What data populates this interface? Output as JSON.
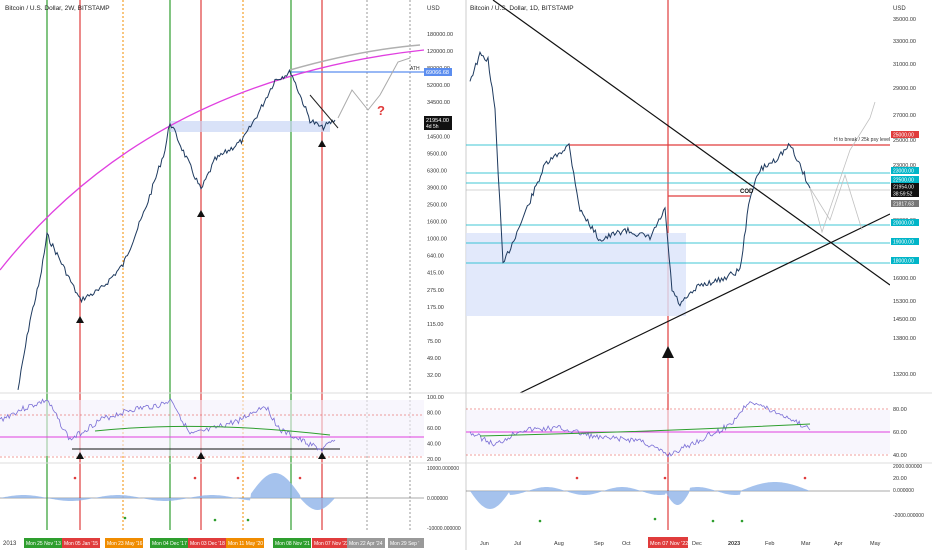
{
  "left": {
    "title": "Bitcoin / U.S. Dollar, 2W, BITSTAMP",
    "currency": "USD",
    "y_ticks": [
      "180000.00",
      "120000.00",
      "80000.00",
      "52000.00",
      "34500.00",
      "22500.00",
      "14500.00",
      "9500.00",
      "6300.00",
      "3900.00",
      "2500.00",
      "1600.00",
      "1000.00",
      "640.00",
      "415.00",
      "275.00",
      "175.00",
      "115.00",
      "75.00",
      "49.00",
      "32.00"
    ],
    "price_label": "21954.00",
    "price_sub": "4d 5h",
    "ath_price": "69066.68",
    "ath_label": "ATH",
    "question_mark": "?",
    "year_label": "2013",
    "date_badges": [
      {
        "text": "Mon 25 Nov '13",
        "color": "#2e9e2e"
      },
      {
        "text": "Mon 05 Jan '15",
        "color": "#e03c3c"
      },
      {
        "text": "Mon 23 May '16",
        "color": "#f08c00"
      },
      {
        "text": "Mon 04 Dec '17",
        "color": "#2e9e2e"
      },
      {
        "text": "Mon 03 Dec '18",
        "color": "#e03c3c"
      },
      {
        "text": "Mon 11 May '20",
        "color": "#f08c00"
      },
      {
        "text": "Mon 08 Nov '21",
        "color": "#2e9e2e"
      },
      {
        "text": "Mon 07 Nov '22",
        "color": "#e03c3c"
      },
      {
        "text": "Mon 22 Apr '24",
        "color": "#999999"
      },
      {
        "text": "Mon 29 Sep '",
        "color": "#999999"
      }
    ],
    "rsi_ticks": [
      "100.00",
      "80.00",
      "60.00",
      "40.00",
      "20.00"
    ],
    "macd_ticks": [
      "10000.000000",
      "0.000000",
      "-10000.000000"
    ]
  },
  "right": {
    "title": "Bitcoin / U.S. Dollar, 1D, BITSTAMP",
    "currency": "USD",
    "y_ticks": [
      "35000.00",
      "33000.00",
      "31000.00",
      "29000.00",
      "27000.00",
      "25000.00",
      "23000.00",
      "21500.00",
      "20000.00",
      "18000.00",
      "16000.00",
      "15300.00",
      "14500.00",
      "13800.00",
      "13200.00"
    ],
    "hl_prices": [
      {
        "text": "25000.00",
        "color": "#e03c3c"
      },
      {
        "text": "23000.00",
        "color": "#00b5c8"
      },
      {
        "text": "22500.00",
        "color": "#00b5c8"
      },
      {
        "text": "21954.00",
        "color": "#111111"
      },
      {
        "text": "38:59:52",
        "color": "#111111"
      },
      {
        "text": "21817.63",
        "color": "#777777"
      },
      {
        "text": "20000.00",
        "color": "#00b5c8"
      },
      {
        "text": "19000.00",
        "color": "#00b5c8"
      },
      {
        "text": "18000.00",
        "color": "#00b5c8"
      }
    ],
    "annotation": "H to break / 25k psy level",
    "cod_label": "COD",
    "x_ticks": [
      "Jun",
      "Jul",
      "Aug",
      "Sep",
      "Oct",
      "Dec",
      "2023",
      "Feb",
      "Mar",
      "Apr",
      "May"
    ],
    "date_badge": {
      "text": "Mon 07 Nov '22",
      "color": "#e03c3c"
    },
    "rsi_ticks": [
      "80.00",
      "60.00",
      "40.00",
      "20.00"
    ],
    "macd_ticks": [
      "2000.000000",
      "0.000000",
      "-2000.000000"
    ]
  },
  "colors": {
    "up": "#26a69a",
    "down": "#ef5350",
    "candle": "#1e3a5f",
    "rsi": "#7b6fd6",
    "arc": "#e040e0",
    "cyan": "#00b5c8",
    "red": "#e03c3c",
    "green": "#2e9e2e",
    "orange": "#f08c00"
  }
}
